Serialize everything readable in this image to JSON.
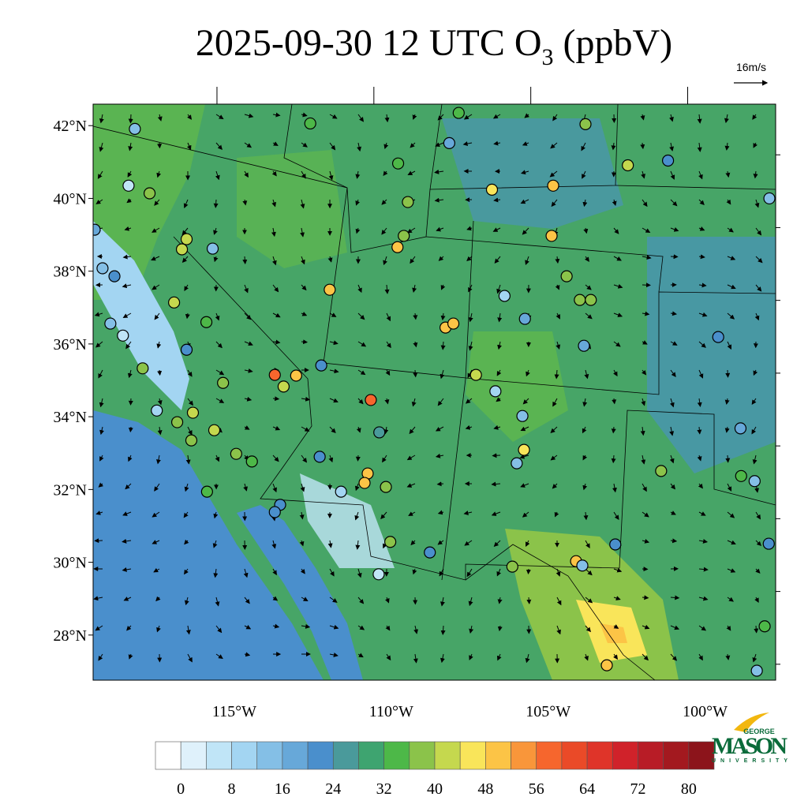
{
  "title": {
    "main": "2025-09-30 12 UTC O",
    "subscript": "3",
    "suffix": " (ppbV)"
  },
  "reference_vector": "16m/s",
  "map": {
    "xlim": [
      -119.5,
      -97.75
    ],
    "ylim": [
      26.76,
      42.59
    ],
    "xticks": [
      {
        "value": -115,
        "label": "115°W"
      },
      {
        "value": -110,
        "label": "110°W"
      },
      {
        "value": -105,
        "label": "105°W"
      },
      {
        "value": -100,
        "label": "100°W"
      }
    ],
    "yticks": [
      {
        "value": 28,
        "label": "28°N"
      },
      {
        "value": 30,
        "label": "30°N"
      },
      {
        "value": 32,
        "label": "32°N"
      },
      {
        "value": 34,
        "label": "34°N"
      },
      {
        "value": 36,
        "label": "36°N"
      },
      {
        "value": 38,
        "label": "38°N"
      },
      {
        "value": 40,
        "label": "40°N"
      },
      {
        "value": 42,
        "label": "42°N"
      }
    ]
  },
  "colorbar": {
    "colors": [
      "#ffffff",
      "#dff1fb",
      "#c0e5f7",
      "#a3d5f2",
      "#84bfe6",
      "#67a8d9",
      "#4a8fcc",
      "#4a9a9b",
      "#3ea470",
      "#4db848",
      "#8bc34a",
      "#c5d84e",
      "#f9e55a",
      "#fcc446",
      "#f9963a",
      "#f6662d",
      "#ea4a28",
      "#df3429",
      "#d0222a",
      "#b81c26",
      "#a3191f",
      "#8c141b"
    ],
    "ticks": [
      0,
      8,
      16,
      24,
      32,
      40,
      48,
      56,
      64,
      72,
      80
    ]
  },
  "stations": [
    {
      "lon": -118.17,
      "lat": 41.91,
      "value": 12
    },
    {
      "lon": -118.37,
      "lat": 40.35,
      "value": 4
    },
    {
      "lon": -117.7,
      "lat": 40.14,
      "value": 38
    },
    {
      "lon": -116.52,
      "lat": 38.88,
      "value": 42
    },
    {
      "lon": -116.67,
      "lat": 38.6,
      "value": 42
    },
    {
      "lon": -115.69,
      "lat": 38.62,
      "value": 14
    },
    {
      "lon": -116.92,
      "lat": 37.14,
      "value": 40
    },
    {
      "lon": -115.89,
      "lat": 36.6,
      "value": 34
    },
    {
      "lon": -116.52,
      "lat": 35.84,
      "value": 22
    },
    {
      "lon": -117.92,
      "lat": 35.33,
      "value": 36
    },
    {
      "lon": -116.32,
      "lat": 34.11,
      "value": 42
    },
    {
      "lon": -115.36,
      "lat": 34.93,
      "value": 36
    },
    {
      "lon": -114.94,
      "lat": 32.98,
      "value": 36
    },
    {
      "lon": -114.44,
      "lat": 32.77,
      "value": 34
    },
    {
      "lon": -115.87,
      "lat": 31.94,
      "value": 34
    },
    {
      "lon": -118.55,
      "lat": 36.23,
      "value": 6
    },
    {
      "lon": -119.2,
      "lat": 38.08,
      "value": 14
    },
    {
      "lon": -113.71,
      "lat": 35.15,
      "value": 56
    },
    {
      "lon": -113.03,
      "lat": 35.13,
      "value": 48
    },
    {
      "lon": -113.43,
      "lat": 34.83,
      "value": 42
    },
    {
      "lon": -112.23,
      "lat": 35.41,
      "value": 20
    },
    {
      "lon": -111.96,
      "lat": 37.49,
      "value": 48
    },
    {
      "lon": -109.8,
      "lat": 38.66,
      "value": 48
    },
    {
      "lon": -109.6,
      "lat": 38.97,
      "value": 38
    },
    {
      "lon": -109.47,
      "lat": 39.9,
      "value": 36
    },
    {
      "lon": -109.78,
      "lat": 40.96,
      "value": 34
    },
    {
      "lon": -107.85,
      "lat": 42.35,
      "value": 32
    },
    {
      "lon": -108.15,
      "lat": 41.52,
      "value": 16
    },
    {
      "lon": -106.79,
      "lat": 40.24,
      "value": 44
    },
    {
      "lon": -104.84,
      "lat": 40.35,
      "value": 48
    },
    {
      "lon": -104.89,
      "lat": 38.97,
      "value": 48
    },
    {
      "lon": -103.81,
      "lat": 42.04,
      "value": 36
    },
    {
      "lon": -102.46,
      "lat": 40.91,
      "value": 42
    },
    {
      "lon": -101.18,
      "lat": 41.04,
      "value": 20
    },
    {
      "lon": -97.95,
      "lat": 40.0,
      "value": 14
    },
    {
      "lon": -108.27,
      "lat": 36.45,
      "value": 48
    },
    {
      "lon": -108.02,
      "lat": 36.56,
      "value": 48
    },
    {
      "lon": -106.39,
      "lat": 37.32,
      "value": 8
    },
    {
      "lon": -105.74,
      "lat": 36.69,
      "value": 18
    },
    {
      "lon": -103.99,
      "lat": 37.21,
      "value": 36
    },
    {
      "lon": -103.64,
      "lat": 37.21,
      "value": 38
    },
    {
      "lon": -104.41,
      "lat": 37.86,
      "value": 38
    },
    {
      "lon": -103.86,
      "lat": 35.95,
      "value": 16
    },
    {
      "lon": -107.3,
      "lat": 35.15,
      "value": 42
    },
    {
      "lon": -106.68,
      "lat": 34.7,
      "value": 8
    },
    {
      "lon": -105.82,
      "lat": 34.02,
      "value": 14
    },
    {
      "lon": -105.77,
      "lat": 33.09,
      "value": 44
    },
    {
      "lon": -106.0,
      "lat": 32.72,
      "value": 12
    },
    {
      "lon": -110.65,
      "lat": 34.46,
      "value": 56
    },
    {
      "lon": -110.38,
      "lat": 33.57,
      "value": 24
    },
    {
      "lon": -110.75,
      "lat": 32.44,
      "value": 48
    },
    {
      "lon": -110.85,
      "lat": 32.18,
      "value": 48
    },
    {
      "lon": -111.6,
      "lat": 31.94,
      "value": 10
    },
    {
      "lon": -110.17,
      "lat": 32.07,
      "value": 36
    },
    {
      "lon": -110.4,
      "lat": 29.67,
      "value": 6
    },
    {
      "lon": -110.03,
      "lat": 30.56,
      "value": 36
    },
    {
      "lon": -108.77,
      "lat": 30.27,
      "value": 20
    },
    {
      "lon": -113.54,
      "lat": 31.58,
      "value": 22
    },
    {
      "lon": -113.71,
      "lat": 31.38,
      "value": 22
    },
    {
      "lon": -112.28,
      "lat": 32.9,
      "value": 20
    },
    {
      "lon": -104.11,
      "lat": 30.03,
      "value": 48
    },
    {
      "lon": -106.14,
      "lat": 29.88,
      "value": 38
    },
    {
      "lon": -103.91,
      "lat": 29.91,
      "value": 14
    },
    {
      "lon": -102.86,
      "lat": 30.49,
      "value": 20
    },
    {
      "lon": -103.13,
      "lat": 27.17,
      "value": 50
    },
    {
      "lon": -101.4,
      "lat": 32.51,
      "value": 36
    },
    {
      "lon": -98.87,
      "lat": 33.68,
      "value": 18
    },
    {
      "lon": -98.42,
      "lat": 32.23,
      "value": 14
    },
    {
      "lon": -98.85,
      "lat": 32.37,
      "value": 34
    },
    {
      "lon": -99.58,
      "lat": 36.19,
      "value": 22
    },
    {
      "lon": -97.97,
      "lat": 30.51,
      "value": 22
    },
    {
      "lon": -98.1,
      "lat": 28.24,
      "value": 34
    },
    {
      "lon": -98.35,
      "lat": 27.02,
      "value": 14
    },
    {
      "lon": -112.58,
      "lat": 42.06,
      "value": 32
    },
    {
      "lon": -119.45,
      "lat": 39.14,
      "value": 16
    },
    {
      "lon": -118.82,
      "lat": 37.86,
      "value": 22
    },
    {
      "lon": -118.95,
      "lat": 36.56,
      "value": 14
    },
    {
      "lon": -117.47,
      "lat": 34.17,
      "value": 8
    },
    {
      "lon": -116.82,
      "lat": 33.85,
      "value": 36
    },
    {
      "lon": -115.64,
      "lat": 33.63,
      "value": 42
    },
    {
      "lon": -116.37,
      "lat": 33.35,
      "value": 36
    }
  ],
  "logo": {
    "top": "GEORGE",
    "main": "MASON",
    "bottom": "UNIVERSITY"
  }
}
